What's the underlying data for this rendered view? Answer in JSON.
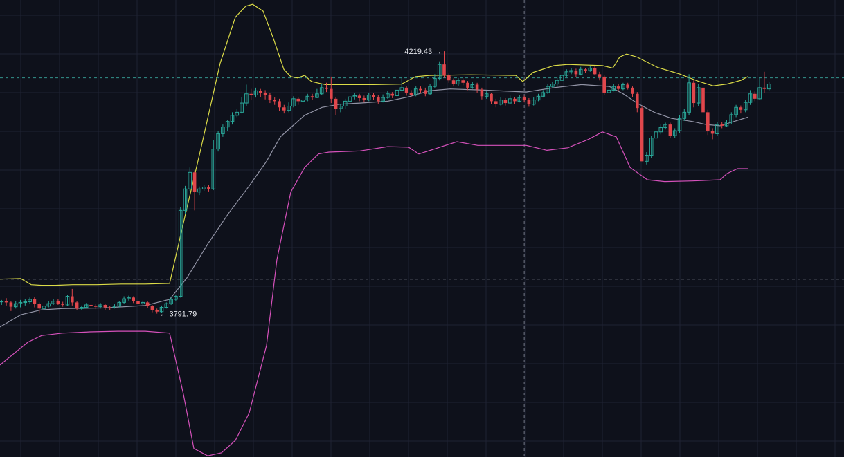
{
  "chart_data": {
    "type": "candlestick",
    "title": "",
    "xlabel": "",
    "ylabel": "",
    "ylim": [
      3558,
      4303
    ],
    "grid": true,
    "colors": {
      "background": "#0e111b",
      "grid": "#1f2333",
      "up": "#2aa89a",
      "down": "#e0474c",
      "bb_upper": "#e8e84a",
      "bb_middle": "#9a9cae",
      "bb_lower": "#e055c4",
      "crosshair": "#9aa0ad",
      "hline": "#3aa99f",
      "label": "#e6e8ee"
    },
    "annotations": {
      "high": {
        "text": "4219.43",
        "arrow": "→",
        "value": 4219.43
      },
      "low": {
        "text": "3791.79",
        "arrow": "←",
        "value": 3791.79
      }
    },
    "reference_lines": [
      4176,
      3848
    ],
    "crosshair_x": 111,
    "candles": [
      [
        3812,
        3812,
        3814,
        3806
      ],
      [
        3812,
        3810,
        3817,
        3805
      ],
      [
        3810,
        3803,
        3812,
        3796
      ],
      [
        3803,
        3808,
        3812,
        3800
      ],
      [
        3808,
        3810,
        3814,
        3802
      ],
      [
        3810,
        3811,
        3815,
        3805
      ],
      [
        3811,
        3815,
        3818,
        3808
      ],
      [
        3815,
        3808,
        3819,
        3802
      ],
      [
        3808,
        3800,
        3810,
        3792
      ],
      [
        3800,
        3804,
        3806,
        3798
      ],
      [
        3804,
        3808,
        3812,
        3802
      ],
      [
        3808,
        3812,
        3816,
        3806
      ],
      [
        3812,
        3808,
        3815,
        3806
      ],
      [
        3808,
        3806,
        3811,
        3803
      ],
      [
        3806,
        3820,
        3822,
        3804
      ],
      [
        3820,
        3810,
        3832,
        3805
      ],
      [
        3810,
        3800,
        3812,
        3798
      ],
      [
        3800,
        3802,
        3805,
        3797
      ],
      [
        3802,
        3806,
        3809,
        3801
      ],
      [
        3806,
        3804,
        3808,
        3800
      ],
      [
        3804,
        3803,
        3807,
        3799
      ],
      [
        3803,
        3806,
        3809,
        3800
      ],
      [
        3806,
        3802,
        3808,
        3798
      ],
      [
        3802,
        3801,
        3804,
        3798
      ],
      [
        3801,
        3804,
        3807,
        3800
      ],
      [
        3804,
        3810,
        3812,
        3802
      ],
      [
        3810,
        3816,
        3820,
        3808
      ],
      [
        3816,
        3818,
        3821,
        3813
      ],
      [
        3818,
        3812,
        3820,
        3809
      ],
      [
        3812,
        3808,
        3814,
        3805
      ],
      [
        3808,
        3810,
        3813,
        3806
      ],
      [
        3810,
        3804,
        3812,
        3801
      ],
      [
        3804,
        3798,
        3806,
        3794
      ],
      [
        3798,
        3795,
        3800,
        3791.79
      ],
      [
        3795,
        3802,
        3805,
        3793
      ],
      [
        3802,
        3808,
        3810,
        3800
      ],
      [
        3808,
        3815,
        3818,
        3806
      ],
      [
        3815,
        3820,
        3822,
        3812
      ],
      [
        3820,
        3960,
        3965,
        3818
      ],
      [
        3960,
        3995,
        4000,
        3955
      ],
      [
        3995,
        4022,
        4030,
        3992
      ],
      [
        4022,
        3990,
        4025,
        3960
      ],
      [
        3990,
        3995,
        3999,
        3985
      ],
      [
        3995,
        3998,
        4001,
        3992
      ],
      [
        3998,
        3995,
        4002,
        3991
      ],
      [
        3995,
        4060,
        4075,
        3993
      ],
      [
        4060,
        4085,
        4090,
        4056
      ],
      [
        4085,
        4096,
        4100,
        4080
      ],
      [
        4096,
        4105,
        4107,
        4090
      ],
      [
        4105,
        4115,
        4120,
        4100
      ],
      [
        4115,
        4120,
        4125,
        4112
      ],
      [
        4120,
        4135,
        4145,
        4118
      ],
      [
        4135,
        4150,
        4165,
        4130
      ],
      [
        4150,
        4148,
        4158,
        4140
      ],
      [
        4148,
        4155,
        4160,
        4144
      ],
      [
        4155,
        4152,
        4158,
        4145
      ],
      [
        4152,
        4148,
        4156,
        4141
      ],
      [
        4148,
        4140,
        4152,
        4135
      ],
      [
        4140,
        4138,
        4144,
        4132
      ],
      [
        4138,
        4128,
        4142,
        4122
      ],
      [
        4128,
        4123,
        4132,
        4118
      ],
      [
        4123,
        4130,
        4136,
        4120
      ],
      [
        4130,
        4142,
        4146,
        4128
      ],
      [
        4142,
        4138,
        4145,
        4132
      ],
      [
        4138,
        4140,
        4143,
        4133
      ],
      [
        4140,
        4146,
        4150,
        4138
      ],
      [
        4146,
        4144,
        4150,
        4140
      ],
      [
        4144,
        4150,
        4158,
        4143
      ],
      [
        4150,
        4160,
        4166,
        4148
      ],
      [
        4160,
        4158,
        4168,
        4153
      ],
      [
        4158,
        4142,
        4178,
        4135
      ],
      [
        4142,
        4126,
        4145,
        4115
      ],
      [
        4126,
        4130,
        4134,
        4120
      ],
      [
        4130,
        4138,
        4142,
        4125
      ],
      [
        4138,
        4145,
        4150,
        4135
      ],
      [
        4145,
        4147,
        4151,
        4141
      ],
      [
        4147,
        4143,
        4150,
        4138
      ],
      [
        4143,
        4140,
        4147,
        4136
      ],
      [
        4140,
        4148,
        4152,
        4138
      ],
      [
        4148,
        4145,
        4151,
        4140
      ],
      [
        4145,
        4138,
        4148,
        4134
      ],
      [
        4138,
        4144,
        4149,
        4136
      ],
      [
        4144,
        4150,
        4155,
        4142
      ],
      [
        4150,
        4147,
        4153,
        4143
      ],
      [
        4147,
        4156,
        4160,
        4145
      ],
      [
        4156,
        4160,
        4178,
        4154
      ],
      [
        4160,
        4152,
        4162,
        4147
      ],
      [
        4152,
        4148,
        4156,
        4144
      ],
      [
        4148,
        4158,
        4162,
        4146
      ],
      [
        4158,
        4156,
        4162,
        4152
      ],
      [
        4156,
        4150,
        4160,
        4146
      ],
      [
        4150,
        4162,
        4166,
        4148
      ],
      [
        4162,
        4175,
        4182,
        4160
      ],
      [
        4175,
        4198,
        4203,
        4172
      ],
      [
        4198,
        4180,
        4219.43,
        4176
      ],
      [
        4180,
        4172,
        4183,
        4168
      ],
      [
        4172,
        4166,
        4175,
        4162
      ],
      [
        4166,
        4172,
        4176,
        4163
      ],
      [
        4172,
        4168,
        4175,
        4164
      ],
      [
        4168,
        4160,
        4171,
        4156
      ],
      [
        4160,
        4165,
        4170,
        4158
      ],
      [
        4165,
        4157,
        4168,
        4152
      ],
      [
        4157,
        4146,
        4160,
        4141
      ],
      [
        4146,
        4150,
        4154,
        4142
      ],
      [
        4150,
        4138,
        4152,
        4133
      ],
      [
        4138,
        4133,
        4142,
        4128
      ],
      [
        4133,
        4140,
        4144,
        4131
      ],
      [
        4140,
        4135,
        4143,
        4131
      ],
      [
        4135,
        4142,
        4147,
        4133
      ],
      [
        4142,
        4138,
        4145,
        4134
      ],
      [
        4138,
        4144,
        4148,
        4136
      ],
      [
        4144,
        4140,
        4147,
        4136
      ],
      [
        4140,
        4133,
        4143,
        4129
      ],
      [
        4133,
        4140,
        4144,
        4131
      ],
      [
        4140,
        4146,
        4150,
        4138
      ],
      [
        4146,
        4152,
        4156,
        4144
      ],
      [
        4152,
        4162,
        4166,
        4150
      ],
      [
        4162,
        4166,
        4170,
        4159
      ],
      [
        4166,
        4172,
        4176,
        4162
      ],
      [
        4172,
        4180,
        4184,
        4170
      ],
      [
        4180,
        4186,
        4190,
        4178
      ],
      [
        4186,
        4188,
        4192,
        4182
      ],
      [
        4188,
        4182,
        4191,
        4177
      ],
      [
        4182,
        4190,
        4194,
        4180
      ],
      [
        4190,
        4188,
        4192,
        4184
      ],
      [
        4188,
        4192,
        4196,
        4186
      ],
      [
        4192,
        4182,
        4195,
        4180
      ],
      [
        4182,
        4178,
        4186,
        4172
      ],
      [
        4178,
        4152,
        4180,
        4148
      ],
      [
        4152,
        4156,
        4162,
        4150
      ],
      [
        4156,
        4162,
        4166,
        4154
      ],
      [
        4162,
        4158,
        4166,
        4154
      ],
      [
        4158,
        4165,
        4168,
        4156
      ],
      [
        4165,
        4160,
        4168,
        4157
      ],
      [
        4160,
        4150,
        4162,
        4145
      ],
      [
        4150,
        4127,
        4153,
        4120
      ],
      [
        4127,
        4040,
        4130,
        4040
      ],
      [
        4040,
        4050,
        4055,
        4035
      ],
      [
        4050,
        4078,
        4082,
        4046
      ],
      [
        4078,
        4088,
        4095,
        4075
      ],
      [
        4088,
        4095,
        4100,
        4084
      ],
      [
        4095,
        4100,
        4103,
        4092
      ],
      [
        4100,
        4082,
        4103,
        4078
      ],
      [
        4082,
        4090,
        4094,
        4078
      ],
      [
        4090,
        4110,
        4115,
        4086
      ],
      [
        4110,
        4120,
        4125,
        4106
      ],
      [
        4120,
        4168,
        4182,
        4115
      ],
      [
        4168,
        4135,
        4172,
        4128
      ],
      [
        4135,
        4160,
        4166,
        4130
      ],
      [
        4160,
        4120,
        4166,
        4115
      ],
      [
        4120,
        4090,
        4124,
        4083
      ],
      [
        4090,
        4085,
        4094,
        4076
      ],
      [
        4085,
        4100,
        4104,
        4082
      ],
      [
        4100,
        4098,
        4104,
        4094
      ],
      [
        4098,
        4104,
        4108,
        4096
      ],
      [
        4104,
        4116,
        4120,
        4101
      ],
      [
        4116,
        4128,
        4132,
        4112
      ],
      [
        4128,
        4124,
        4131,
        4118
      ],
      [
        4124,
        4136,
        4140,
        4120
      ],
      [
        4136,
        4150,
        4156,
        4132
      ],
      [
        4150,
        4142,
        4154,
        4138
      ],
      [
        4142,
        4160,
        4176,
        4140
      ],
      [
        4160,
        4158,
        4186,
        4152
      ],
      [
        4158,
        4166,
        4170,
        4155
      ]
    ],
    "bb_upper": [
      [
        0,
        3848
      ],
      [
        30,
        3849
      ],
      [
        45,
        3839
      ],
      [
        60,
        3838
      ],
      [
        80,
        3838
      ],
      [
        105,
        3839
      ],
      [
        140,
        3839
      ],
      [
        175,
        3840
      ],
      [
        210,
        3840
      ],
      [
        245,
        3841
      ],
      [
        265,
        3940
      ],
      [
        290,
        4060
      ],
      [
        318,
        4200
      ],
      [
        340,
        4275
      ],
      [
        355,
        4293
      ],
      [
        365,
        4296
      ],
      [
        380,
        4285
      ],
      [
        395,
        4240
      ],
      [
        410,
        4190
      ],
      [
        420,
        4178
      ],
      [
        430,
        4176
      ],
      [
        440,
        4180
      ],
      [
        450,
        4170
      ],
      [
        470,
        4165
      ],
      [
        540,
        4165
      ],
      [
        580,
        4166
      ],
      [
        600,
        4178
      ],
      [
        620,
        4180
      ],
      [
        680,
        4181
      ],
      [
        745,
        4180
      ],
      [
        755,
        4170
      ],
      [
        770,
        4185
      ],
      [
        800,
        4196
      ],
      [
        820,
        4198
      ],
      [
        870,
        4196
      ],
      [
        885,
        4192
      ],
      [
        895,
        4210
      ],
      [
        905,
        4215
      ],
      [
        920,
        4210
      ],
      [
        950,
        4193
      ],
      [
        980,
        4183
      ],
      [
        1010,
        4170
      ],
      [
        1030,
        4163
      ],
      [
        1050,
        4166
      ],
      [
        1070,
        4172
      ],
      [
        1080,
        4178
      ]
    ],
    "bb_middle": [
      [
        0,
        3770
      ],
      [
        30,
        3790
      ],
      [
        60,
        3798
      ],
      [
        90,
        3800
      ],
      [
        150,
        3801
      ],
      [
        210,
        3805
      ],
      [
        245,
        3815
      ],
      [
        270,
        3850
      ],
      [
        300,
        3905
      ],
      [
        330,
        3955
      ],
      [
        360,
        4000
      ],
      [
        385,
        4040
      ],
      [
        405,
        4080
      ],
      [
        420,
        4095
      ],
      [
        440,
        4115
      ],
      [
        465,
        4128
      ],
      [
        490,
        4133
      ],
      [
        520,
        4135
      ],
      [
        560,
        4138
      ],
      [
        590,
        4145
      ],
      [
        620,
        4155
      ],
      [
        650,
        4158
      ],
      [
        700,
        4156
      ],
      [
        760,
        4153
      ],
      [
        800,
        4160
      ],
      [
        840,
        4165
      ],
      [
        880,
        4162
      ],
      [
        900,
        4150
      ],
      [
        920,
        4135
      ],
      [
        945,
        4120
      ],
      [
        970,
        4110
      ],
      [
        1000,
        4105
      ],
      [
        1020,
        4100
      ],
      [
        1040,
        4098
      ],
      [
        1060,
        4105
      ],
      [
        1080,
        4112
      ]
    ],
    "bb_lower": [
      [
        0,
        3708
      ],
      [
        40,
        3745
      ],
      [
        60,
        3756
      ],
      [
        90,
        3760
      ],
      [
        130,
        3762
      ],
      [
        170,
        3763
      ],
      [
        210,
        3763
      ],
      [
        245,
        3760
      ],
      [
        265,
        3660
      ],
      [
        280,
        3572
      ],
      [
        300,
        3560
      ],
      [
        320,
        3565
      ],
      [
        340,
        3585
      ],
      [
        360,
        3630
      ],
      [
        385,
        3740
      ],
      [
        400,
        3880
      ],
      [
        420,
        3990
      ],
      [
        440,
        4030
      ],
      [
        460,
        4052
      ],
      [
        475,
        4055
      ],
      [
        520,
        4057
      ],
      [
        560,
        4064
      ],
      [
        590,
        4063
      ],
      [
        605,
        4052
      ],
      [
        660,
        4072
      ],
      [
        690,
        4066
      ],
      [
        760,
        4066
      ],
      [
        790,
        4058
      ],
      [
        820,
        4062
      ],
      [
        850,
        4076
      ],
      [
        870,
        4088
      ],
      [
        890,
        4080
      ],
      [
        910,
        4030
      ],
      [
        935,
        4010
      ],
      [
        960,
        4007
      ],
      [
        1000,
        4008
      ],
      [
        1040,
        4010
      ],
      [
        1050,
        4020
      ],
      [
        1065,
        4028
      ],
      [
        1080,
        4028
      ]
    ]
  }
}
